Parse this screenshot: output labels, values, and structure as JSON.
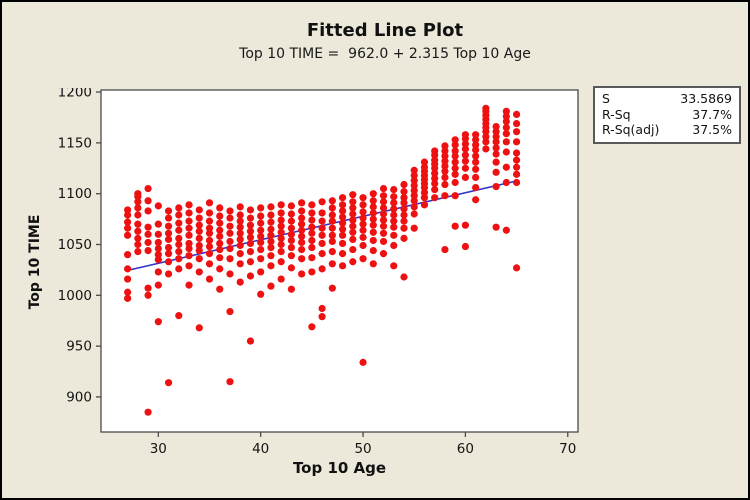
{
  "titles": {
    "title": "Fitted Line Plot",
    "subtitle": "Top 10 TIME =  962.0 + 2.315 Top 10 Age"
  },
  "legend": {
    "rows": [
      {
        "label": "S",
        "value": "33.5869"
      },
      {
        "label": "R-Sq",
        "value": "37.7%"
      },
      {
        "label": "R-Sq(adj)",
        "value": "37.5%"
      }
    ]
  },
  "colors": {
    "background": "#ECE9DA",
    "plot_background": "#FFFFFF",
    "frame": "#4A4A4A",
    "point": "#EE1111",
    "fit_line": "#3333CC",
    "text": "#141414"
  },
  "chart_data": {
    "type": "scatter",
    "title": "Fitted Line Plot",
    "subtitle": "Top 10 TIME =  962.0 + 2.315 Top 10 Age",
    "xlabel": "Top 10 Age",
    "ylabel": "Top 10 TIME",
    "xlim": [
      24.4,
      71.0
    ],
    "ylim": [
      865.5,
      1202
    ],
    "xticks": [
      30,
      40,
      50,
      60,
      70
    ],
    "yticks": [
      900,
      950,
      1000,
      1050,
      1100,
      1150,
      1200
    ],
    "grid": false,
    "legend_position": "top-right",
    "fit_line": {
      "equation": "Top 10 TIME = 962.0 + 2.315 Top 10 Age",
      "intercept": 962.0,
      "slope": 2.315,
      "x_start": 27,
      "x_end": 65
    },
    "stats": {
      "S": 33.5869,
      "R-Sq": "37.7%",
      "R-Sq(adj)": "37.5%"
    },
    "points_by_age": {
      "27": [
        997,
        1003,
        1016,
        1026,
        1040,
        1059,
        1066,
        1072,
        1079,
        1084
      ],
      "28": [
        1043,
        1050,
        1056,
        1063,
        1070,
        1079,
        1086,
        1092,
        1097,
        1100
      ],
      "29": [
        885,
        1000,
        1007,
        1044,
        1052,
        1060,
        1067,
        1083,
        1093,
        1105
      ],
      "30": [
        974,
        1010,
        1023,
        1035,
        1040,
        1046,
        1052,
        1060,
        1070,
        1088
      ],
      "31": [
        914,
        1021,
        1033,
        1041,
        1047,
        1055,
        1061,
        1068,
        1076,
        1083
      ],
      "32": [
        980,
        1026,
        1036,
        1043,
        1050,
        1056,
        1064,
        1071,
        1079,
        1086
      ],
      "33": [
        1010,
        1029,
        1039,
        1046,
        1051,
        1059,
        1066,
        1073,
        1081,
        1089
      ],
      "34": [
        968,
        1023,
        1036,
        1044,
        1049,
        1056,
        1063,
        1069,
        1076,
        1084
      ],
      "35": [
        1016,
        1031,
        1041,
        1048,
        1054,
        1061,
        1066,
        1073,
        1081,
        1091
      ],
      "36": [
        1006,
        1026,
        1037,
        1045,
        1051,
        1058,
        1064,
        1071,
        1078,
        1086
      ],
      "37": [
        915,
        984,
        1021,
        1036,
        1046,
        1053,
        1061,
        1068,
        1076,
        1083
      ],
      "38": [
        1013,
        1031,
        1041,
        1049,
        1055,
        1061,
        1067,
        1073,
        1079,
        1087
      ],
      "39": [
        955,
        1019,
        1033,
        1043,
        1051,
        1057,
        1063,
        1069,
        1076,
        1084
      ],
      "40": [
        1001,
        1023,
        1036,
        1045,
        1052,
        1058,
        1064,
        1071,
        1078,
        1086
      ],
      "41": [
        1009,
        1029,
        1039,
        1047,
        1053,
        1059,
        1065,
        1072,
        1079,
        1087
      ],
      "42": [
        1016,
        1033,
        1043,
        1050,
        1056,
        1062,
        1068,
        1074,
        1081,
        1089
      ],
      "43": [
        1006,
        1027,
        1039,
        1047,
        1054,
        1060,
        1066,
        1073,
        1080,
        1088
      ],
      "44": [
        1021,
        1036,
        1045,
        1052,
        1058,
        1064,
        1070,
        1076,
        1083,
        1091
      ],
      "45": [
        969,
        1023,
        1037,
        1047,
        1054,
        1061,
        1067,
        1074,
        1081,
        1089
      ],
      "46": [
        979,
        987,
        1026,
        1041,
        1051,
        1059,
        1066,
        1073,
        1081,
        1092
      ],
      "47": [
        1007,
        1031,
        1043,
        1053,
        1059,
        1066,
        1073,
        1079,
        1086,
        1093
      ],
      "48": [
        1029,
        1041,
        1051,
        1059,
        1065,
        1071,
        1077,
        1083,
        1089,
        1096
      ],
      "49": [
        1033,
        1045,
        1055,
        1062,
        1068,
        1074,
        1080,
        1086,
        1092,
        1099
      ],
      "50": [
        934,
        1036,
        1049,
        1057,
        1064,
        1070,
        1076,
        1082,
        1089,
        1096
      ],
      "51": [
        1031,
        1044,
        1054,
        1062,
        1069,
        1075,
        1081,
        1087,
        1093,
        1100
      ],
      "52": [
        1041,
        1053,
        1061,
        1068,
        1074,
        1080,
        1086,
        1092,
        1098,
        1105
      ],
      "53": [
        1029,
        1049,
        1059,
        1067,
        1073,
        1079,
        1085,
        1091,
        1097,
        1104
      ],
      "54": [
        1018,
        1056,
        1066,
        1073,
        1079,
        1085,
        1091,
        1096,
        1102,
        1109
      ],
      "55": [
        1066,
        1080,
        1087,
        1093,
        1098,
        1103,
        1108,
        1113,
        1118,
        1123
      ],
      "56": [
        1089,
        1096,
        1101,
        1106,
        1110,
        1114,
        1118,
        1122,
        1126,
        1131
      ],
      "57": [
        1096,
        1104,
        1110,
        1115,
        1120,
        1125,
        1129,
        1133,
        1138,
        1142
      ],
      "58": [
        1045,
        1098,
        1109,
        1116,
        1122,
        1127,
        1132,
        1137,
        1142,
        1147
      ],
      "59": [
        1068,
        1098,
        1111,
        1119,
        1125,
        1131,
        1137,
        1142,
        1148,
        1153
      ],
      "60": [
        1048,
        1069,
        1116,
        1125,
        1132,
        1138,
        1144,
        1149,
        1154,
        1158
      ],
      "61": [
        1094,
        1106,
        1116,
        1124,
        1131,
        1137,
        1143,
        1148,
        1153,
        1158
      ],
      "62": [
        1144,
        1151,
        1156,
        1161,
        1165,
        1169,
        1173,
        1177,
        1181,
        1184
      ],
      "63": [
        1067,
        1107,
        1121,
        1131,
        1139,
        1145,
        1151,
        1156,
        1161,
        1166
      ],
      "64": [
        1064,
        1111,
        1126,
        1141,
        1151,
        1159,
        1165,
        1171,
        1176,
        1181
      ],
      "65": [
        1027,
        1111,
        1119,
        1126,
        1133,
        1140,
        1151,
        1161,
        1169,
        1178
      ]
    }
  }
}
